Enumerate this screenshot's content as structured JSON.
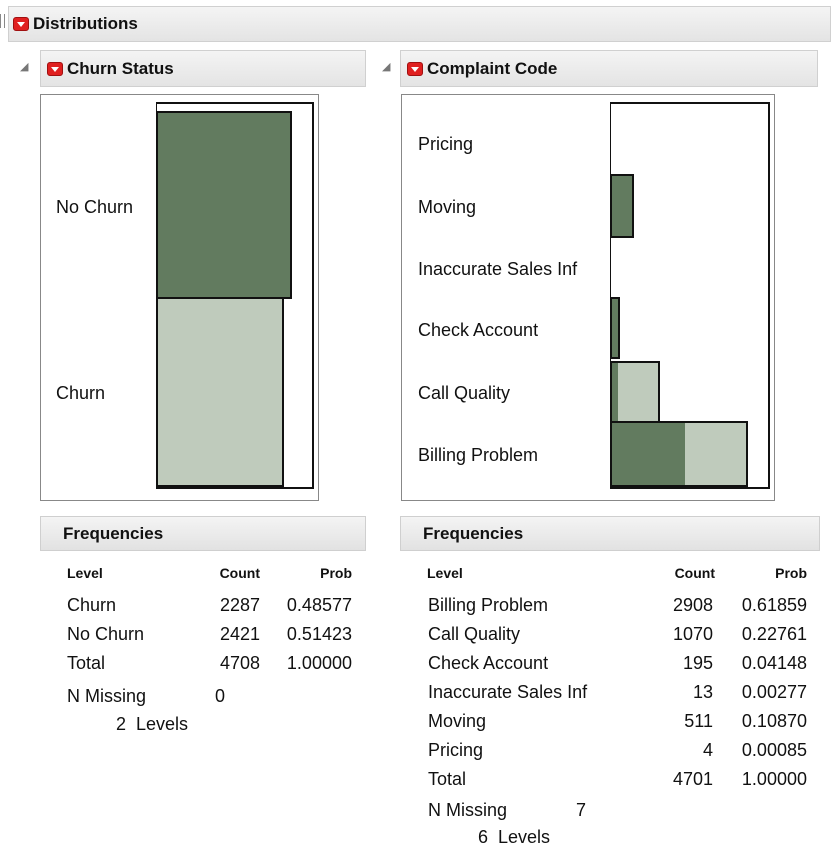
{
  "distributions": {
    "title": "Distributions"
  },
  "left": {
    "title": "Churn Status",
    "levels": [
      "No Churn",
      "Churn"
    ],
    "freq_title": "Frequencies",
    "columns": [
      "Level",
      "Count",
      "Prob"
    ],
    "rows": [
      {
        "level": "Churn",
        "count": "2287",
        "prob": "0.48577"
      },
      {
        "level": "No Churn",
        "count": "2421",
        "prob": "0.51423"
      },
      {
        "level": "Total",
        "count": "4708",
        "prob": "1.00000"
      }
    ],
    "n_missing_label": "N Missing",
    "n_missing": "0",
    "levels_text": "2  Levels"
  },
  "right": {
    "title": "Complaint Code",
    "levels": [
      "Pricing",
      "Moving",
      "Inaccurate Sales Inf",
      "Check Account",
      "Call Quality",
      "Billing Problem"
    ],
    "freq_title": "Frequencies",
    "columns": [
      "Level",
      "Count",
      "Prob"
    ],
    "rows": [
      {
        "level": "Billing Problem",
        "count": "2908",
        "prob": "0.61859"
      },
      {
        "level": "Call Quality",
        "count": "1070",
        "prob": "0.22761"
      },
      {
        "level": "Check Account",
        "count": "195",
        "prob": "0.04148"
      },
      {
        "level": "Inaccurate Sales Inf",
        "count": "13",
        "prob": "0.00277"
      },
      {
        "level": "Moving",
        "count": "511",
        "prob": "0.10870"
      },
      {
        "level": "Pricing",
        "count": "4",
        "prob": "0.00085"
      },
      {
        "level": "Total",
        "count": "4701",
        "prob": "1.00000"
      }
    ],
    "n_missing_label": "N Missing",
    "n_missing": "7",
    "levels_text": "6  Levels"
  },
  "colors": {
    "dark_series": "#627b5f",
    "light_series": "#bfcbbc"
  }
}
